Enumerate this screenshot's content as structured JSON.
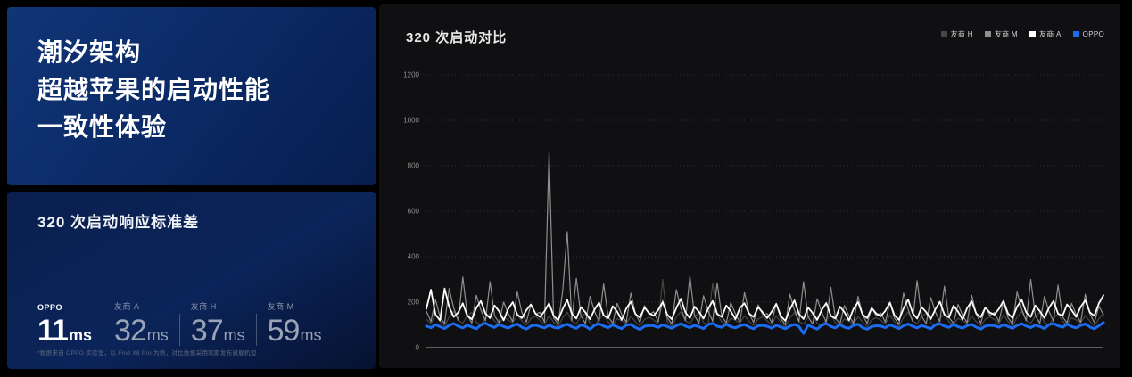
{
  "hero": {
    "title_lines": [
      "潮汐架构",
      "超越苹果的启动性能",
      "一致性体验"
    ]
  },
  "metrics_panel": {
    "title": "320 次启动响应标准差",
    "metrics": [
      {
        "label": "OPPO",
        "value": "11",
        "unit": "ms",
        "highlight": true
      },
      {
        "label": "友商 A",
        "value": "32",
        "unit": "ms",
        "highlight": false
      },
      {
        "label": "友商 H",
        "value": "37",
        "unit": "ms",
        "highlight": false
      },
      {
        "label": "友商 M",
        "value": "59",
        "unit": "ms",
        "highlight": false
      }
    ],
    "footnote": "*数据来自 OPPO 实验室，以 Find X8 Pro 为例，对比数据采用同期发布旗舰机型"
  },
  "chart": {
    "title": "320 次启动对比",
    "legend": [
      {
        "label": "友商 H",
        "color": "#464646"
      },
      {
        "label": "友商 M",
        "color": "#8f8f8f"
      },
      {
        "label": "友商 A",
        "color": "#ffffff"
      },
      {
        "label": "OPPO",
        "color": "#1b6cf0"
      }
    ],
    "colors": {
      "grid": "rgba(255,255,255,0.14)",
      "axis": "#5f5f5f",
      "tick_text": "#8c8c8c",
      "panel_bg": "#101013",
      "accent_blue": "#1b6cf0"
    }
  },
  "chart_data": {
    "type": "line",
    "title": "320 次启动对比",
    "xlabel": "",
    "ylabel": "",
    "ylim": [
      0,
      1200
    ],
    "y_ticks": [
      0,
      200,
      400,
      600,
      800,
      1000,
      1200
    ],
    "grid": "dotted-horizontal",
    "legend_position": "top-right",
    "x_points": 150,
    "series": [
      {
        "name": "友商 H",
        "color": "#464646",
        "width": 1.2,
        "values": [
          125,
          105,
          145,
          115,
          95,
          135,
          160,
          120,
          108,
          140,
          155,
          112,
          100,
          130,
          150,
          116,
          104,
          132,
          122,
          110,
          142,
          118,
          98,
          128,
          138,
          120,
          102,
          142,
          112,
          92,
          132,
          156,
          116,
          105,
          136,
          150,
          108,
          96,
          126,
          146,
          112,
          100,
          128,
          118,
          106,
          138,
          114,
          95,
          124,
          134,
          122,
          104,
          300,
          114,
          94,
          134,
          158,
          118,
          106,
          138,
          152,
          110,
          98,
          285,
          148,
          114,
          102,
          130,
          120,
          108,
          140,
          116,
          96,
          126,
          136,
          118,
          100,
          140,
          110,
          90,
          130,
          154,
          114,
          103,
          134,
          148,
          106,
          94,
          124,
          144,
          110,
          98,
          126,
          116,
          104,
          136,
          112,
          93,
          122,
          132,
          121,
          103,
          143,
          113,
          93,
          133,
          157,
          117,
          105,
          137,
          151,
          109,
          97,
          127,
          147,
          113,
          101,
          129,
          119,
          107,
          139,
          115,
          94,
          125,
          135,
          123,
          105,
          145,
          115,
          95,
          135,
          159,
          119,
          107,
          139,
          153,
          111,
          99,
          129,
          149,
          115,
          103,
          131,
          121,
          109,
          141,
          117,
          96,
          127,
          150
        ]
      },
      {
        "name": "友商 M",
        "color": "#8f8f8f",
        "width": 1.2,
        "values": [
          160,
          115,
          210,
          135,
          105,
          260,
          175,
          120,
          310,
          145,
          108,
          230,
          165,
          118,
          290,
          140,
          110,
          200,
          150,
          115,
          245,
          155,
          112,
          190,
          148,
          155,
          112,
          860,
          130,
          105,
          250,
          510,
          118,
          305,
          140,
          106,
          225,
          160,
          115,
          280,
          135,
          108,
          195,
          145,
          112,
          240,
          150,
          110,
          185,
          145,
          158,
          114,
          208,
          132,
          104,
          255,
          172,
          119,
          315,
          142,
          107,
          228,
          162,
          116,
          285,
          138,
          109,
          198,
          148,
          113,
          242,
          152,
          111,
          188,
          146,
          150,
          110,
          195,
          128,
          100,
          235,
          165,
          114,
          290,
          136,
          104,
          215,
          155,
          112,
          265,
          130,
          105,
          185,
          140,
          108,
          225,
          145,
          106,
          175,
          140,
          152,
          112,
          198,
          130,
          102,
          240,
          168,
          116,
          295,
          138,
          105,
          220,
          158,
          114,
          270,
          132,
          107,
          190,
          142,
          110,
          230,
          148,
          108,
          178,
          142,
          155,
          114,
          202,
          132,
          104,
          245,
          170,
          118,
          300,
          140,
          107,
          225,
          160,
          116,
          275,
          135,
          109,
          195,
          145,
          112,
          235,
          150,
          110,
          182,
          145
        ]
      },
      {
        "name": "友商 A",
        "color": "#ffffff",
        "width": 1.8,
        "values": [
          170,
          255,
          145,
          120,
          260,
          180,
          135,
          155,
          195,
          140,
          125,
          175,
          205,
          150,
          130,
          185,
          160,
          120,
          170,
          200,
          145,
          130,
          165,
          190,
          150,
          135,
          160,
          195,
          140,
          120,
          170,
          210,
          150,
          128,
          178,
          155,
          125,
          168,
          198,
          142,
          130,
          182,
          158,
          122,
          172,
          202,
          148,
          132,
          176,
          152,
          140,
          165,
          200,
          145,
          125,
          175,
          215,
          155,
          130,
          180,
          158,
          128,
          170,
          205,
          148,
          135,
          185,
          160,
          125,
          175,
          195,
          150,
          135,
          178,
          155,
          130,
          158,
          192,
          138,
          118,
          168,
          208,
          148,
          126,
          176,
          152,
          122,
          166,
          196,
          140,
          128,
          180,
          156,
          120,
          170,
          200,
          146,
          130,
          174,
          150,
          138,
          162,
          198,
          142,
          122,
          172,
          212,
          152,
          128,
          178,
          156,
          126,
          168,
          202,
          146,
          132,
          184,
          158,
          124,
          174,
          204,
          150,
          134,
          176,
          154,
          145,
          170,
          205,
          150,
          130,
          180,
          210,
          155,
          135,
          185,
          160,
          130,
          175,
          205,
          150,
          140,
          190,
          165,
          135,
          180,
          208,
          155,
          140,
          195,
          230
        ]
      },
      {
        "name": "OPPO",
        "color": "#1b6cf0",
        "width": 3,
        "values": [
          95,
          88,
          101,
          92,
          84,
          98,
          106,
          94,
          87,
          99,
          91,
          83,
          100,
          108,
          96,
          89,
          102,
          93,
          86,
          97,
          104,
          90,
          82,
          95,
          99,
          93,
          87,
          99,
          90,
          86,
          96,
          103,
          92,
          85,
          100,
          94,
          81,
          98,
          105,
          95,
          88,
          100,
          91,
          84,
          99,
          102,
          89,
          80,
          94,
          97,
          96,
          89,
          100,
          93,
          85,
          97,
          105,
          95,
          88,
          98,
          92,
          84,
          101,
          107,
          94,
          90,
          103,
          92,
          87,
          96,
          101,
          91,
          83,
          96,
          98,
          94,
          86,
          98,
          91,
          83,
          95,
          102,
          93,
          62,
          99,
          90,
          82,
          99,
          106,
          93,
          87,
          101,
          90,
          85,
          98,
          103,
          88,
          81,
          93,
          96,
          95,
          88,
          100,
          92,
          84,
          96,
          104,
          94,
          87,
          97,
          91,
          83,
          100,
          105,
          95,
          89,
          102,
          92,
          86,
          97,
          102,
          90,
          82,
          95,
          98,
          97,
          90,
          101,
          93,
          85,
          98,
          105,
          95,
          88,
          99,
          93,
          84,
          101,
          106,
          96,
          90,
          103,
          93,
          87,
          98,
          104,
          91,
          83,
          96,
          110
        ]
      }
    ]
  }
}
